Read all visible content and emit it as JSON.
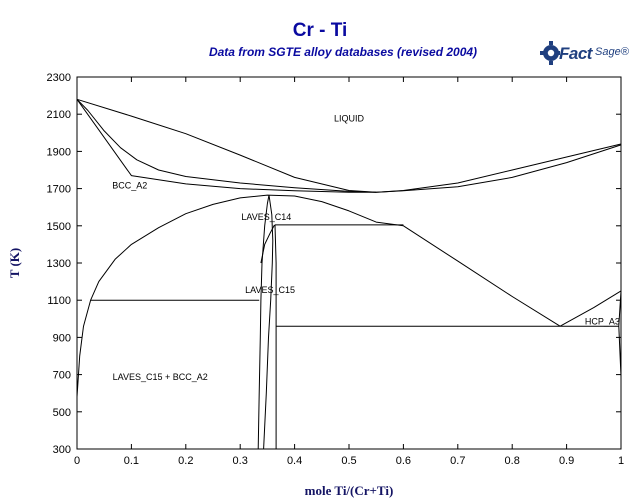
{
  "chart_data": {
    "type": "line",
    "title": "Cr - Ti",
    "subtitle": "Data from SGTE alloy databases (revised 2004)",
    "xlabel": "mole Ti/(Cr+Ti)",
    "ylabel": "T (K)",
    "xlim": [
      0,
      1
    ],
    "ylim": [
      300,
      2300
    ],
    "x_ticks": [
      0,
      0.1,
      0.2,
      0.3,
      0.4,
      0.5,
      0.6,
      0.7,
      0.8,
      0.9,
      1
    ],
    "x_tick_labels": [
      "0",
      "0.1",
      "0.2",
      "0.3",
      "0.4",
      "0.5",
      "0.6",
      "0.7",
      "0.8",
      "0.9",
      "1"
    ],
    "y_ticks": [
      300,
      500,
      700,
      900,
      1100,
      1300,
      1500,
      1700,
      1900,
      2100,
      2300
    ],
    "y_tick_labels": [
      "300",
      "500",
      "700",
      "900",
      "1100",
      "1300",
      "1500",
      "1700",
      "1900",
      "2100",
      "2300"
    ],
    "grid": false,
    "phase_labels": [
      {
        "text": "LIQUID",
        "x": 0.5,
        "y": 2060
      },
      {
        "text": "BCC_A2",
        "x": 0.097,
        "y": 1700
      },
      {
        "text": "LAVES_C14",
        "x": 0.348,
        "y": 1530
      },
      {
        "text": "LAVES_C15",
        "x": 0.355,
        "y": 1140
      },
      {
        "text": "HCP_A3",
        "x": 0.998,
        "y": 970
      },
      {
        "text": "LAVES_C15 + BCC_A2",
        "x": 0.153,
        "y": 670
      }
    ],
    "series": [
      {
        "values": [
          [
            0,
            2180
          ],
          [
            0.1,
            2090
          ],
          [
            0.2,
            1995
          ],
          [
            0.3,
            1880
          ],
          [
            0.4,
            1760
          ],
          [
            0.5,
            1690
          ],
          [
            0.55,
            1680
          ],
          [
            0.6,
            1690
          ],
          [
            0.7,
            1730
          ],
          [
            0.8,
            1800
          ],
          [
            0.9,
            1870
          ],
          [
            1,
            1940
          ]
        ]
      },
      {
        "values": [
          [
            0,
            2180
          ],
          [
            0.02,
            2120
          ],
          [
            0.05,
            2010
          ],
          [
            0.08,
            1920
          ],
          [
            0.11,
            1855
          ],
          [
            0.15,
            1800
          ],
          [
            0.2,
            1765
          ],
          [
            0.3,
            1730
          ],
          [
            0.4,
            1705
          ],
          [
            0.5,
            1685
          ],
          [
            0.55,
            1680
          ],
          [
            0.6,
            1688
          ],
          [
            0.7,
            1710
          ],
          [
            0.8,
            1760
          ],
          [
            0.9,
            1840
          ],
          [
            1,
            1935
          ]
        ]
      },
      {
        "values": [
          [
            0,
            2180
          ],
          [
            0.1,
            1770
          ],
          [
            0.2,
            1725
          ],
          [
            0.3,
            1700
          ],
          [
            0.4,
            1688
          ],
          [
            0.5,
            1680
          ],
          [
            0.55,
            1680
          ]
        ]
      },
      {
        "values": [
          [
            0,
            580
          ],
          [
            0.005,
            800
          ],
          [
            0.012,
            960
          ],
          [
            0.025,
            1100
          ],
          [
            0.04,
            1200
          ],
          [
            0.07,
            1320
          ],
          [
            0.1,
            1400
          ],
          [
            0.15,
            1490
          ],
          [
            0.2,
            1565
          ],
          [
            0.25,
            1615
          ],
          [
            0.3,
            1650
          ],
          [
            0.35,
            1665
          ],
          [
            0.4,
            1660
          ],
          [
            0.45,
            1630
          ],
          [
            0.5,
            1580
          ],
          [
            0.55,
            1520
          ],
          [
            0.6,
            1500
          ],
          [
            0.7,
            1310
          ],
          [
            0.8,
            1120
          ],
          [
            0.888,
            960
          ]
        ]
      },
      {
        "values": [
          [
            0.888,
            960
          ],
          [
            0.95,
            1060
          ],
          [
            1,
            1150
          ]
        ]
      },
      {
        "values": [
          [
            1,
            690
          ],
          [
            0.996,
            960
          ],
          [
            1,
            1150
          ]
        ]
      },
      {
        "values": [
          [
            0.025,
            1100
          ],
          [
            0.335,
            1100
          ]
        ]
      },
      {
        "values": [
          [
            0.364,
            1505
          ],
          [
            0.6,
            1505
          ]
        ]
      },
      {
        "values": [
          [
            0.366,
            960
          ],
          [
            0.996,
            960
          ]
        ]
      },
      {
        "values": [
          [
            0.333,
            300
          ],
          [
            0.335,
            600
          ],
          [
            0.337,
            900
          ],
          [
            0.338,
            1100
          ],
          [
            0.34,
            1300
          ],
          [
            0.345,
            1500
          ],
          [
            0.35,
            1620
          ],
          [
            0.353,
            1665
          ]
        ]
      },
      {
        "values": [
          [
            0.343,
            300
          ],
          [
            0.348,
            600
          ],
          [
            0.352,
            900
          ],
          [
            0.356,
            1100
          ],
          [
            0.359,
            1300
          ],
          [
            0.36,
            1420
          ],
          [
            0.358,
            1560
          ],
          [
            0.353,
            1665
          ]
        ]
      },
      {
        "values": [
          [
            0.338,
            1300
          ],
          [
            0.345,
            1400
          ],
          [
            0.355,
            1460
          ],
          [
            0.363,
            1505
          ]
        ]
      },
      {
        "values": [
          [
            0.366,
            300
          ],
          [
            0.366,
            960
          ],
          [
            0.366,
            1300
          ],
          [
            0.364,
            1505
          ]
        ]
      }
    ]
  },
  "logo": {
    "fact": "Fact",
    "sage": "Sage®"
  }
}
